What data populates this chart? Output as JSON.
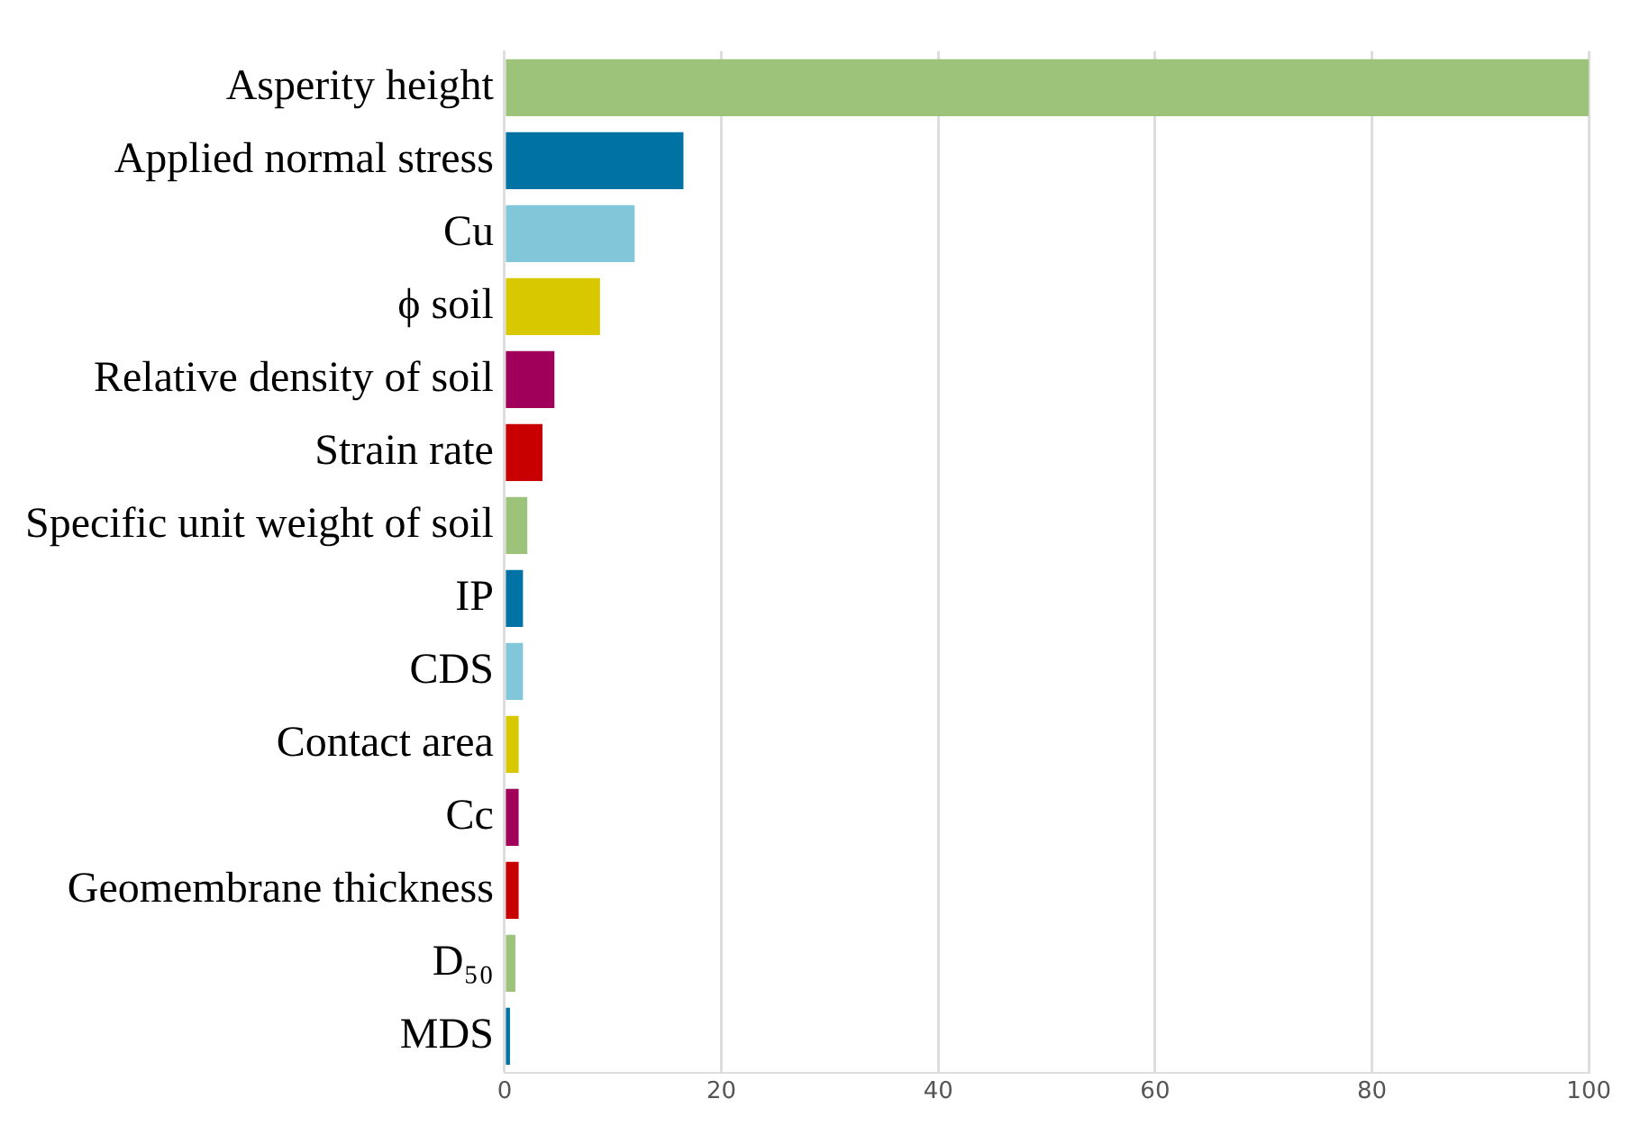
{
  "chart_data": {
    "type": "bar",
    "orientation": "horizontal",
    "categories": [
      "Asperity height",
      "Applied normal stress",
      "Cu",
      "ϕ soil",
      "Relative density of soil",
      "Strain rate",
      "Specific unit weight of soil",
      "IP",
      "CDS",
      "Contact area",
      "Cc",
      "Geomembrane thickness",
      "D₅₀",
      "MDS"
    ],
    "values": [
      100,
      16.5,
      12,
      8.8,
      4.6,
      3.5,
      2.1,
      1.7,
      1.7,
      1.3,
      1.3,
      1.3,
      1.0,
      0.5
    ],
    "colors": [
      "#9dc37a",
      "#0072a3",
      "#82c6d9",
      "#d8c800",
      "#a0005a",
      "#c80000",
      "#9dc37a",
      "#0072a3",
      "#82c6d9",
      "#d8c800",
      "#a0005a",
      "#c80000",
      "#9dc37a",
      "#0072a3"
    ],
    "xlim": [
      0,
      100
    ],
    "xticks": [
      0,
      20,
      40,
      60,
      80,
      100
    ],
    "grid": "x"
  }
}
